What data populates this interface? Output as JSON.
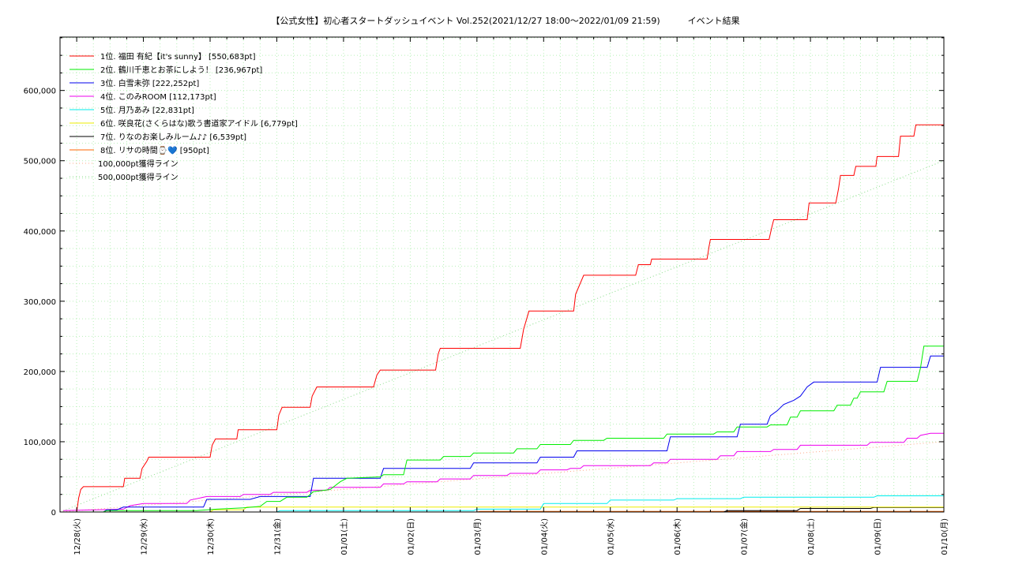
{
  "chart_data": {
    "type": "line",
    "title": "【公式女性】初心者スタートダッシュイベント Vol.252(2021/12/27 18:00～2022/01/09 21:59)          イベント結果",
    "xlabel": "",
    "ylabel": "",
    "x_tick_labels": [
      "12/28(火)",
      "12/29(水)",
      "12/30(木)",
      "12/31(金)",
      "01/01(土)",
      "01/02(日)",
      "01/03(月)",
      "01/04(火)",
      "01/05(水)",
      "01/06(木)",
      "01/07(金)",
      "01/08(土)",
      "01/09(日)",
      "01/10(月)"
    ],
    "x_range_days": [
      -0.25,
      13.0
    ],
    "y_ticks": [
      0,
      100000,
      200000,
      300000,
      400000,
      500000,
      600000
    ],
    "y_tick_labels": [
      "0",
      "100,000",
      "200,000",
      "300,000",
      "400,000",
      "500,000",
      "600,000"
    ],
    "ylim": [
      0,
      676000
    ],
    "grid": true,
    "legend_position": "top-left",
    "series": [
      {
        "name": "1位. 福田 有紀【it's sunny】 [550,683pt]",
        "color": "#ff0000",
        "style": "solid",
        "points": [
          [
            -0.2,
            0
          ],
          [
            0.0,
            0
          ],
          [
            0.03,
            20000
          ],
          [
            0.06,
            32000
          ],
          [
            0.1,
            36000
          ],
          [
            0.7,
            36000
          ],
          [
            0.72,
            48000
          ],
          [
            0.95,
            48000
          ],
          [
            0.98,
            62000
          ],
          [
            1.05,
            72000
          ],
          [
            1.08,
            78000
          ],
          [
            2.0,
            78000
          ],
          [
            2.03,
            95000
          ],
          [
            2.08,
            104000
          ],
          [
            2.4,
            104000
          ],
          [
            2.42,
            117000
          ],
          [
            3.0,
            117000
          ],
          [
            3.03,
            138000
          ],
          [
            3.08,
            149000
          ],
          [
            3.5,
            149000
          ],
          [
            3.53,
            165000
          ],
          [
            3.6,
            178000
          ],
          [
            4.45,
            178000
          ],
          [
            4.5,
            195000
          ],
          [
            4.55,
            202000
          ],
          [
            5.38,
            202000
          ],
          [
            5.42,
            225000
          ],
          [
            5.45,
            233000
          ],
          [
            6.65,
            233000
          ],
          [
            6.7,
            260000
          ],
          [
            6.78,
            286000
          ],
          [
            7.45,
            286000
          ],
          [
            7.48,
            310000
          ],
          [
            7.6,
            337000
          ],
          [
            8.38,
            337000
          ],
          [
            8.42,
            352000
          ],
          [
            8.6,
            352000
          ],
          [
            8.62,
            360000
          ],
          [
            9.45,
            360000
          ],
          [
            9.48,
            378000
          ],
          [
            9.5,
            388000
          ],
          [
            10.38,
            388000
          ],
          [
            10.42,
            405000
          ],
          [
            10.45,
            416000
          ],
          [
            10.95,
            416000
          ],
          [
            10.98,
            440000
          ],
          [
            11.38,
            440000
          ],
          [
            11.42,
            460000
          ],
          [
            11.45,
            479000
          ],
          [
            11.65,
            479000
          ],
          [
            11.68,
            492000
          ],
          [
            11.98,
            492000
          ],
          [
            12.0,
            506000
          ],
          [
            12.32,
            506000
          ],
          [
            12.35,
            535000
          ],
          [
            12.55,
            535000
          ],
          [
            12.58,
            551000
          ],
          [
            13.0,
            551000
          ]
        ]
      },
      {
        "name": "2位. 鶴川千恵とお茶にしよう！ [236,967pt]",
        "color": "#00ee00",
        "style": "solid",
        "points": [
          [
            -0.2,
            0
          ],
          [
            0.4,
            0
          ],
          [
            0.45,
            2000
          ],
          [
            1.8,
            2000
          ],
          [
            2.1,
            4000
          ],
          [
            2.5,
            6000
          ],
          [
            2.75,
            8000
          ],
          [
            2.85,
            15000
          ],
          [
            3.05,
            15000
          ],
          [
            3.15,
            21000
          ],
          [
            3.45,
            21000
          ],
          [
            3.55,
            29000
          ],
          [
            3.8,
            32000
          ],
          [
            3.95,
            43000
          ],
          [
            4.05,
            48000
          ],
          [
            4.55,
            50000
          ],
          [
            4.6,
            53000
          ],
          [
            4.9,
            53000
          ],
          [
            4.95,
            74000
          ],
          [
            5.45,
            74000
          ],
          [
            5.5,
            79000
          ],
          [
            5.9,
            79000
          ],
          [
            5.95,
            84000
          ],
          [
            6.55,
            84000
          ],
          [
            6.6,
            90000
          ],
          [
            6.9,
            90000
          ],
          [
            6.95,
            96000
          ],
          [
            7.4,
            96000
          ],
          [
            7.45,
            102000
          ],
          [
            7.9,
            102000
          ],
          [
            7.95,
            105000
          ],
          [
            8.8,
            105000
          ],
          [
            8.85,
            111000
          ],
          [
            9.55,
            111000
          ],
          [
            9.6,
            114000
          ],
          [
            9.85,
            114000
          ],
          [
            9.9,
            121000
          ],
          [
            10.35,
            121000
          ],
          [
            10.4,
            124000
          ],
          [
            10.65,
            124000
          ],
          [
            10.7,
            135000
          ],
          [
            10.8,
            135000
          ],
          [
            10.85,
            144000
          ],
          [
            11.35,
            144000
          ],
          [
            11.4,
            152000
          ],
          [
            11.6,
            152000
          ],
          [
            11.65,
            162000
          ],
          [
            11.7,
            162000
          ],
          [
            11.75,
            171000
          ],
          [
            12.1,
            171000
          ],
          [
            12.15,
            186000
          ],
          [
            12.6,
            186000
          ],
          [
            12.65,
            205000
          ],
          [
            12.7,
            236000
          ],
          [
            13.0,
            236000
          ]
        ]
      },
      {
        "name": "3位. 白雪未弥 [222,252pt]",
        "color": "#0000ee",
        "style": "solid",
        "points": [
          [
            -0.2,
            0
          ],
          [
            0.4,
            0
          ],
          [
            0.45,
            3000
          ],
          [
            0.6,
            3000
          ],
          [
            0.7,
            7000
          ],
          [
            1.9,
            7000
          ],
          [
            1.95,
            18000
          ],
          [
            2.6,
            18000
          ],
          [
            2.75,
            22000
          ],
          [
            3.5,
            22000
          ],
          [
            3.55,
            48000
          ],
          [
            4.55,
            48000
          ],
          [
            4.6,
            62000
          ],
          [
            5.9,
            62000
          ],
          [
            5.95,
            70000
          ],
          [
            6.9,
            70000
          ],
          [
            6.95,
            78000
          ],
          [
            7.45,
            78000
          ],
          [
            7.5,
            87000
          ],
          [
            8.85,
            87000
          ],
          [
            8.9,
            107000
          ],
          [
            9.9,
            107000
          ],
          [
            9.95,
            125000
          ],
          [
            10.35,
            125000
          ],
          [
            10.4,
            137000
          ],
          [
            10.5,
            144000
          ],
          [
            10.6,
            153000
          ],
          [
            10.75,
            159000
          ],
          [
            10.85,
            165000
          ],
          [
            10.95,
            178000
          ],
          [
            11.05,
            185000
          ],
          [
            12.0,
            185000
          ],
          [
            12.05,
            206000
          ],
          [
            12.75,
            206000
          ],
          [
            12.8,
            222000
          ],
          [
            13.0,
            222000
          ]
        ]
      },
      {
        "name": "4位. このみROOM [112,173pt]",
        "color": "#ee00ee",
        "style": "solid",
        "points": [
          [
            -0.2,
            2000
          ],
          [
            0.7,
            4000
          ],
          [
            0.8,
            9000
          ],
          [
            1.0,
            12000
          ],
          [
            1.65,
            12000
          ],
          [
            1.7,
            17000
          ],
          [
            1.95,
            22000
          ],
          [
            2.45,
            22000
          ],
          [
            2.5,
            25000
          ],
          [
            2.9,
            25000
          ],
          [
            2.95,
            28000
          ],
          [
            3.45,
            28000
          ],
          [
            3.5,
            31000
          ],
          [
            3.75,
            31000
          ],
          [
            3.8,
            35000
          ],
          [
            4.55,
            35000
          ],
          [
            4.6,
            40000
          ],
          [
            4.9,
            40000
          ],
          [
            4.95,
            43000
          ],
          [
            5.4,
            43000
          ],
          [
            5.45,
            47000
          ],
          [
            5.9,
            47000
          ],
          [
            5.95,
            52000
          ],
          [
            6.45,
            52000
          ],
          [
            6.5,
            55000
          ],
          [
            6.9,
            55000
          ],
          [
            6.95,
            60000
          ],
          [
            7.35,
            60000
          ],
          [
            7.4,
            62000
          ],
          [
            7.55,
            62000
          ],
          [
            7.6,
            66000
          ],
          [
            8.6,
            66000
          ],
          [
            8.65,
            70000
          ],
          [
            8.85,
            70000
          ],
          [
            8.9,
            75000
          ],
          [
            9.6,
            75000
          ],
          [
            9.65,
            80000
          ],
          [
            9.85,
            80000
          ],
          [
            9.9,
            86000
          ],
          [
            10.4,
            86000
          ],
          [
            10.45,
            89000
          ],
          [
            10.8,
            89000
          ],
          [
            10.85,
            95000
          ],
          [
            11.85,
            95000
          ],
          [
            11.9,
            99000
          ],
          [
            12.4,
            99000
          ],
          [
            12.45,
            105000
          ],
          [
            12.6,
            105000
          ],
          [
            12.65,
            109000
          ],
          [
            12.8,
            112000
          ],
          [
            13.0,
            112000
          ]
        ]
      },
      {
        "name": "5位. 月乃あみ [22,831pt]",
        "color": "#00eeee",
        "style": "solid",
        "points": [
          [
            -0.2,
            0
          ],
          [
            3.0,
            0
          ],
          [
            3.05,
            2000
          ],
          [
            5.95,
            2000
          ],
          [
            6.0,
            4000
          ],
          [
            6.95,
            4000
          ],
          [
            7.0,
            12000
          ],
          [
            7.95,
            12000
          ],
          [
            8.0,
            17000
          ],
          [
            8.95,
            17000
          ],
          [
            9.0,
            19000
          ],
          [
            9.95,
            19000
          ],
          [
            10.0,
            21000
          ],
          [
            11.95,
            21000
          ],
          [
            12.0,
            23000
          ],
          [
            13.0,
            23000
          ]
        ]
      },
      {
        "name": "6位. 咲良花(さくらはな)歌う書道家アイドル [6,779pt]",
        "color": "#eeee00",
        "style": "solid",
        "points": [
          [
            -0.2,
            0
          ],
          [
            2.0,
            0
          ],
          [
            2.05,
            3000
          ],
          [
            2.5,
            3000
          ],
          [
            2.55,
            7000
          ],
          [
            13.0,
            7000
          ]
        ]
      },
      {
        "name": "7位. りなのお楽しみルーム♪♪ [6,539pt]",
        "color": "#000000",
        "style": "solid",
        "points": [
          [
            -0.2,
            0
          ],
          [
            9.7,
            0
          ],
          [
            9.75,
            2000
          ],
          [
            10.8,
            2000
          ],
          [
            10.85,
            5000
          ],
          [
            11.9,
            5000
          ],
          [
            11.95,
            6500
          ],
          [
            13.0,
            6500
          ]
        ]
      },
      {
        "name": "8位. リサの時間⌚💙 [950pt]",
        "color": "#ff6600",
        "style": "solid",
        "points": [
          [
            -0.2,
            0
          ],
          [
            6.0,
            0
          ],
          [
            6.05,
            950
          ],
          [
            13.0,
            950
          ]
        ]
      },
      {
        "name": "100,000pt獲得ライン",
        "color": "#ffaa88",
        "style": "dotted",
        "points": [
          [
            -0.25,
            0
          ],
          [
            13.0,
            100000
          ]
        ]
      },
      {
        "name": "500,000pt獲得ライン",
        "color": "#88dd88",
        "style": "dotted",
        "points": [
          [
            -0.25,
            0
          ],
          [
            13.0,
            500000
          ]
        ]
      }
    ]
  }
}
